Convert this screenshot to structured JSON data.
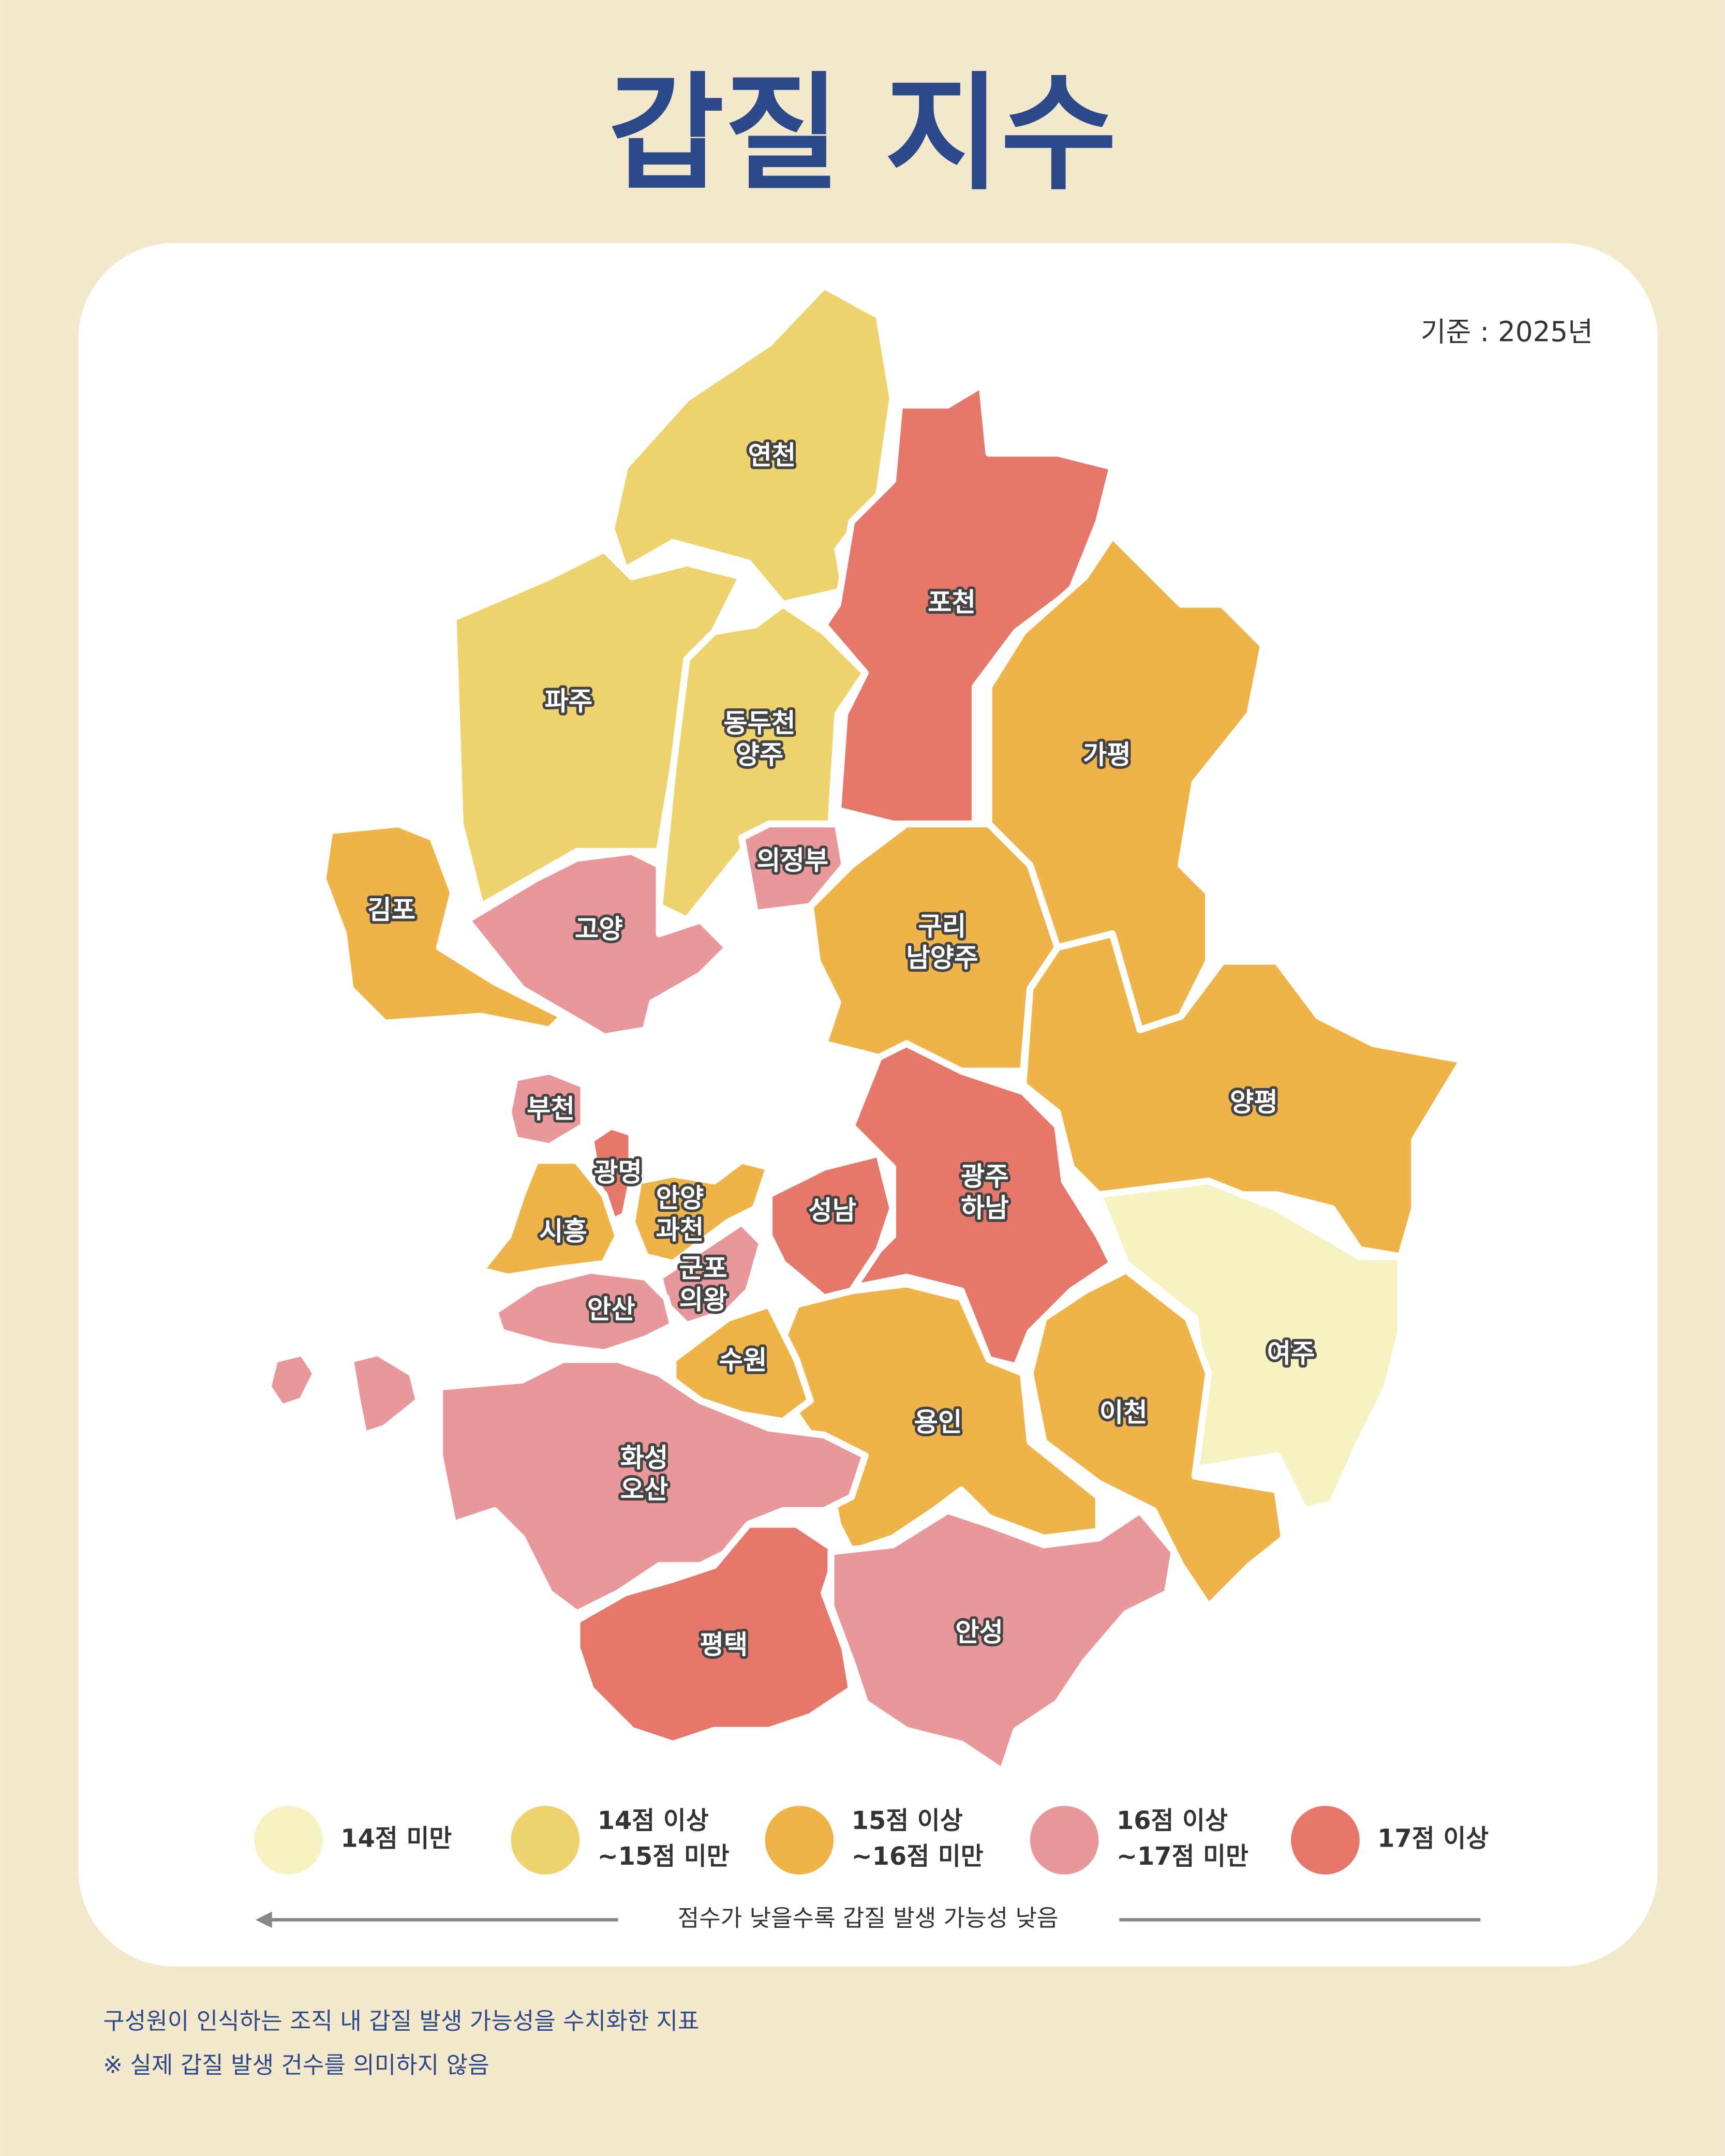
{
  "title": "갑질 지수",
  "basis": "기준 : 2025년",
  "regions": [
    {
      "name": [
        "연천"
      ],
      "color": "#eed26e"
    },
    {
      "name": [
        "포천"
      ],
      "color": "#e5786a"
    },
    {
      "name": [
        "가평"
      ],
      "color": "#eeb44a"
    },
    {
      "name": [
        "파주"
      ],
      "color": "#eed26e"
    },
    {
      "name": [
        "동두천",
        "양주"
      ],
      "color": "#eed26e"
    },
    {
      "name": [
        "의정부"
      ],
      "color": "#e8979a"
    },
    {
      "name": [
        "김포"
      ],
      "color": "#eeb44a"
    },
    {
      "name": [
        "고양"
      ],
      "color": "#e8979a"
    },
    {
      "name": [
        "구리",
        "남양주"
      ],
      "color": "#eeb44a"
    },
    {
      "name": [
        "양평"
      ],
      "color": "#eeb44a"
    },
    {
      "name": [
        "여주"
      ],
      "color": "#f7f2c2"
    },
    {
      "name": [
        "광주",
        "하남"
      ],
      "color": "#e5786a"
    },
    {
      "name": [
        "성남"
      ],
      "color": "#e5786a"
    },
    {
      "name": [
        "이천"
      ],
      "color": "#eeb44a"
    },
    {
      "name": [
        "용인"
      ],
      "color": "#eeb44a"
    },
    {
      "name": [
        "수원"
      ],
      "color": "#eeb44a"
    },
    {
      "name": [
        "화성",
        "오산"
      ],
      "color": "#e8979a"
    },
    {
      "name": [
        "평택"
      ],
      "color": "#e5786a"
    },
    {
      "name": [
        "안성"
      ],
      "color": "#e8979a"
    },
    {
      "name": [
        "부천"
      ],
      "color": "#e8979a"
    },
    {
      "name": [
        "광명"
      ],
      "color": "#e5786a"
    },
    {
      "name": [
        "시흥"
      ],
      "color": "#eeb44a"
    },
    {
      "name": [
        "안양",
        "과천"
      ],
      "color": "#eeb44a"
    },
    {
      "name": [
        "군포",
        "의왕"
      ],
      "color": "#e8979a"
    },
    {
      "name": [
        "안산"
      ],
      "color": "#e8979a"
    }
  ],
  "legend": {
    "items": [
      {
        "label": [
          "14점 미만"
        ],
        "color": "#f7f2c2"
      },
      {
        "label": [
          "14점 이상",
          "~15점 미만"
        ],
        "color": "#eed26e"
      },
      {
        "label": [
          "15점 이상",
          "~16점 미만"
        ],
        "color": "#eeb44a"
      },
      {
        "label": [
          "16점 이상",
          "~17점 미만"
        ],
        "color": "#e8979a"
      },
      {
        "label": [
          "17점 이상"
        ],
        "color": "#e5786a"
      }
    ],
    "note": "점수가 낮을수록 갑질 발생 가능성 낮음"
  },
  "footnotes": [
    "구성원이 인식하는 조직 내 갑질 발생 가능성을 수치화한 지표",
    "※ 실제 갑질 발생 건수를 의미하지 않음"
  ]
}
